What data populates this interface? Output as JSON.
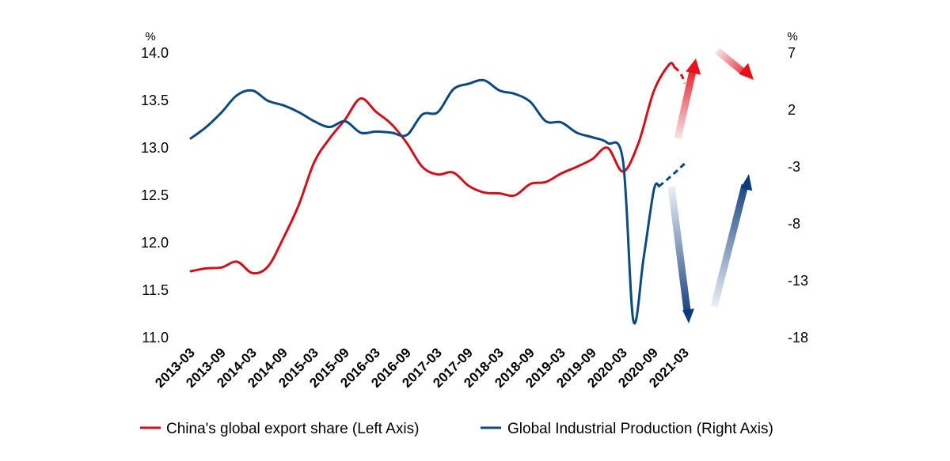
{
  "chart_data": {
    "type": "line",
    "left_axis": {
      "unit": "%",
      "ylim": [
        11.0,
        14.0
      ],
      "ticks": [
        "14.0",
        "13.5",
        "13.0",
        "12.5",
        "12.0",
        "11.5",
        "11.0"
      ]
    },
    "right_axis": {
      "unit": "%",
      "ylim": [
        -18,
        7
      ],
      "ticks": [
        "7",
        "2",
        "-3",
        "-8",
        "-13",
        "-18"
      ]
    },
    "x_ticks": [
      "2013-03",
      "2013-09",
      "2014-03",
      "2014-09",
      "2015-03",
      "2015-09",
      "2016-03",
      "2016-09",
      "2017-03",
      "2017-09",
      "2018-03",
      "2018-09",
      "2019-03",
      "2019-09",
      "2020-03",
      "2020-09",
      "2021-03"
    ],
    "series": [
      {
        "name": "China's global export share (Left Axis)",
        "axis": "left",
        "color": "#d0111b",
        "points": [
          [
            "2013-03",
            11.7
          ],
          [
            "2013-06",
            11.73
          ],
          [
            "2013-09",
            11.74
          ],
          [
            "2013-12",
            11.8
          ],
          [
            "2014-03",
            11.68
          ],
          [
            "2014-06",
            11.75
          ],
          [
            "2014-09",
            12.05
          ],
          [
            "2014-12",
            12.4
          ],
          [
            "2015-03",
            12.85
          ],
          [
            "2015-06",
            13.1
          ],
          [
            "2015-09",
            13.3
          ],
          [
            "2015-12",
            13.52
          ],
          [
            "2016-03",
            13.38
          ],
          [
            "2016-06",
            13.25
          ],
          [
            "2016-09",
            13.05
          ],
          [
            "2016-12",
            12.8
          ],
          [
            "2017-03",
            12.72
          ],
          [
            "2017-06",
            12.74
          ],
          [
            "2017-09",
            12.6
          ],
          [
            "2017-12",
            12.53
          ],
          [
            "2018-03",
            12.52
          ],
          [
            "2018-06",
            12.5
          ],
          [
            "2018-09",
            12.62
          ],
          [
            "2018-12",
            12.64
          ],
          [
            "2019-03",
            12.73
          ],
          [
            "2019-06",
            12.8
          ],
          [
            "2019-09",
            12.88
          ],
          [
            "2019-12",
            13.0
          ],
          [
            "2020-03",
            12.75
          ],
          [
            "2020-06",
            13.05
          ],
          [
            "2020-09",
            13.6
          ],
          [
            "2020-12",
            13.88
          ],
          [
            "2021-01",
            13.85
          ]
        ],
        "projection": [
          [
            "2021-01",
            13.85
          ],
          [
            "2021-03",
            13.68
          ]
        ]
      },
      {
        "name": "Global Industrial Production (Right Axis)",
        "axis": "right",
        "color": "#0d4a7e",
        "points": [
          [
            "2013-03",
            -0.5
          ],
          [
            "2013-06",
            0.5
          ],
          [
            "2013-09",
            1.8
          ],
          [
            "2013-12",
            3.3
          ],
          [
            "2014-03",
            3.7
          ],
          [
            "2014-06",
            2.8
          ],
          [
            "2014-09",
            2.4
          ],
          [
            "2014-12",
            1.8
          ],
          [
            "2015-03",
            1.0
          ],
          [
            "2015-06",
            0.5
          ],
          [
            "2015-09",
            1.0
          ],
          [
            "2015-12",
            -0.0
          ],
          [
            "2016-03",
            0.1
          ],
          [
            "2016-06",
            0.0
          ],
          [
            "2016-09",
            -0.2
          ],
          [
            "2016-12",
            1.6
          ],
          [
            "2017-03",
            1.8
          ],
          [
            "2017-06",
            3.8
          ],
          [
            "2017-09",
            4.3
          ],
          [
            "2017-12",
            4.6
          ],
          [
            "2018-03",
            3.7
          ],
          [
            "2018-06",
            3.4
          ],
          [
            "2018-09",
            2.7
          ],
          [
            "2018-12",
            1.0
          ],
          [
            "2019-03",
            0.9
          ],
          [
            "2019-06",
            0.0
          ],
          [
            "2019-09",
            -0.4
          ],
          [
            "2019-12",
            -0.9
          ],
          [
            "2020-03",
            -2.5
          ],
          [
            "2020-05",
            -16.5
          ],
          [
            "2020-07",
            -11.0
          ],
          [
            "2020-09",
            -5.0
          ],
          [
            "2020-10",
            -4.7
          ]
        ],
        "projection": [
          [
            "2020-10",
            -4.7
          ],
          [
            "2021-03",
            -2.7
          ]
        ]
      }
    ],
    "legend_position": "bottom"
  }
}
